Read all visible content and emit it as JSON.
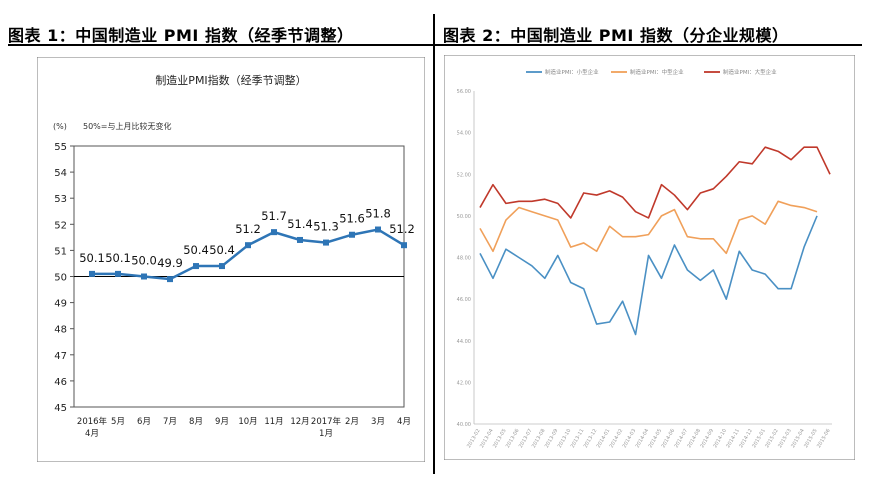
{
  "fig1": {
    "title": "图表 1：中国制造业 PMI 指数（经季节调整）"
  },
  "fig2": {
    "title": "图表 2：中国制造业 PMI 指数（分企业规模）"
  },
  "chart_data": [
    {
      "type": "line",
      "title": "制造业PMI指数（经季节调整）",
      "unit_label": "(%)",
      "annotation": "50%=与上月比较无变化",
      "categories": [
        "2016年4月",
        "5月",
        "6月",
        "7月",
        "8月",
        "9月",
        "10月",
        "11月",
        "12月",
        "2017年1月",
        "2月",
        "3月",
        "4月"
      ],
      "series": [
        {
          "color": "#2e75b6",
          "values": [
            50.1,
            50.1,
            50.0,
            49.9,
            50.4,
            50.4,
            51.2,
            51.7,
            51.4,
            51.3,
            51.6,
            51.8,
            51.2
          ],
          "labels": [
            "50.1",
            "50.1",
            "50.0",
            "49.9",
            "50.4",
            "50.4",
            "51.2",
            "51.7",
            "51.4",
            "51.3",
            "51.6",
            "51.8",
            "51.2"
          ]
        }
      ],
      "ylim": [
        45,
        55
      ],
      "yticks": [
        "45",
        "46",
        "47",
        "48",
        "49",
        "50",
        "51",
        "52",
        "53",
        "54",
        "55"
      ],
      "reference_line": 50,
      "grid": false
    },
    {
      "type": "line",
      "title": "",
      "legend_position": "top",
      "x": [
        "2013-02",
        "2013-04",
        "2013-05",
        "2013-06",
        "2013-07",
        "2013-08",
        "2013-09",
        "2013-10",
        "2013-11",
        "2013-12",
        "2014-01",
        "2014-02",
        "2014-03",
        "2014-04",
        "2014-05",
        "2014-06",
        "2014-07",
        "2014-08",
        "2014-09",
        "2014-10",
        "2014-11",
        "2014-12",
        "2015-01",
        "2015-02",
        "2015-03",
        "2015-04",
        "2015-05",
        "2015-06"
      ],
      "series": [
        {
          "name": "制造业PMI：小型企业",
          "color": "#4a90c4",
          "values": [
            48.2,
            47.0,
            48.4,
            48.0,
            47.6,
            47.0,
            48.1,
            46.8,
            46.5,
            44.8,
            44.9,
            45.9,
            44.3,
            48.1,
            47.0,
            48.6,
            47.4,
            46.9,
            47.4,
            46.0,
            48.3,
            47.4,
            47.2,
            46.5,
            46.5,
            48.5,
            50.0,
            null
          ],
          "skip_last": true
        },
        {
          "name": "制造业PMI：中型企业",
          "color": "#f0a05a",
          "values": [
            49.4,
            48.3,
            49.8,
            50.4,
            50.2,
            50.0,
            49.8,
            48.5,
            48.7,
            48.3,
            49.5,
            49.0,
            49.0,
            49.1,
            50.0,
            50.3,
            49.0,
            48.9,
            48.9,
            48.2,
            49.8,
            50.0,
            49.6,
            50.7,
            50.5,
            50.4,
            50.2,
            null
          ]
        },
        {
          "name": "制造业PMI：大型企业",
          "color": "#c0392b",
          "values": [
            50.4,
            51.5,
            50.6,
            50.7,
            50.7,
            50.8,
            50.6,
            49.9,
            51.1,
            51.0,
            51.2,
            50.9,
            50.2,
            49.9,
            51.5,
            51.0,
            50.3,
            51.1,
            51.3,
            51.9,
            52.6,
            52.5,
            53.3,
            53.1,
            52.7,
            53.3,
            53.3,
            52.0
          ]
        }
      ],
      "ylim": [
        40,
        56
      ],
      "yticks": [
        "40.00",
        "42.00",
        "44.00",
        "46.00",
        "48.00",
        "50.00",
        "52.00",
        "54.00",
        "56.00"
      ],
      "grid": false
    }
  ]
}
